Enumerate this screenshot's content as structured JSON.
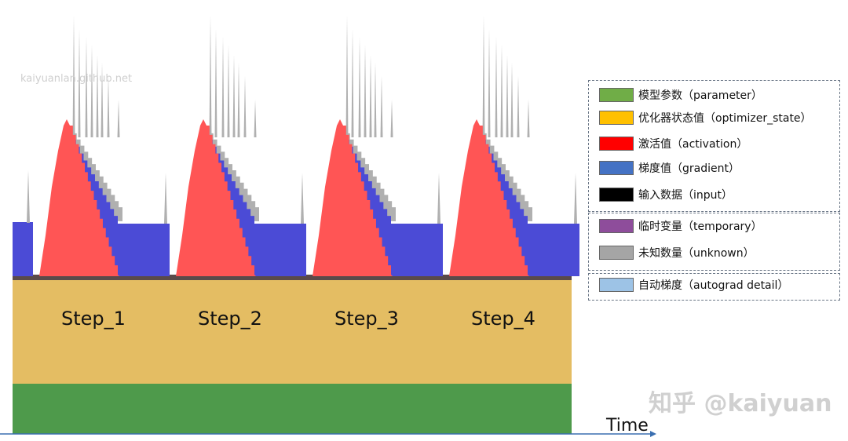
{
  "chart_data": {
    "type": "area",
    "title": "",
    "xlabel": "Time",
    "ylabel": "",
    "x_axis_arrow": true,
    "steps": [
      "Step_1",
      "Step_2",
      "Step_3",
      "Step_4"
    ],
    "layers_bottom_to_top": [
      "parameter",
      "optimizer_state",
      "input",
      "activation",
      "gradient",
      "unknown"
    ],
    "legend": [
      {
        "group": 1,
        "label": "模型参数（parameter）",
        "key": "parameter",
        "color": "#70ad47"
      },
      {
        "group": 1,
        "label": "优化器状态值（optimizer_state）",
        "key": "optimizer_state",
        "color": "#ffc000"
      },
      {
        "group": 1,
        "label": "激活值（activation）",
        "key": "activation",
        "color": "#ff0000"
      },
      {
        "group": 1,
        "label": "梯度值（gradient）",
        "key": "gradient",
        "color": "#4472c4"
      },
      {
        "group": 1,
        "label": "输入数据（input）",
        "key": "input",
        "color": "#000000"
      },
      {
        "group": 2,
        "label": "临时变量（temporary）",
        "key": "temporary",
        "color": "#8e4d9b"
      },
      {
        "group": 2,
        "label": "未知数量（unknown）",
        "key": "unknown",
        "color": "#a5a5a5"
      },
      {
        "group": 3,
        "label": "自动梯度（autograd detail）",
        "key": "autograd_detail",
        "color": "#9dc3e6"
      }
    ],
    "colors": {
      "parameter": "#4e9a4b",
      "optimizer_state": "#e4bd63",
      "input": "#5a4a4a",
      "activation": "#ff5555",
      "gradient": "#4b4bd6",
      "unknown": "#b0b0b0",
      "axis": "#3a6fb0"
    },
    "watermark": "kaiyuanlan.github.net",
    "credit": "知乎 @kaiyuan"
  }
}
